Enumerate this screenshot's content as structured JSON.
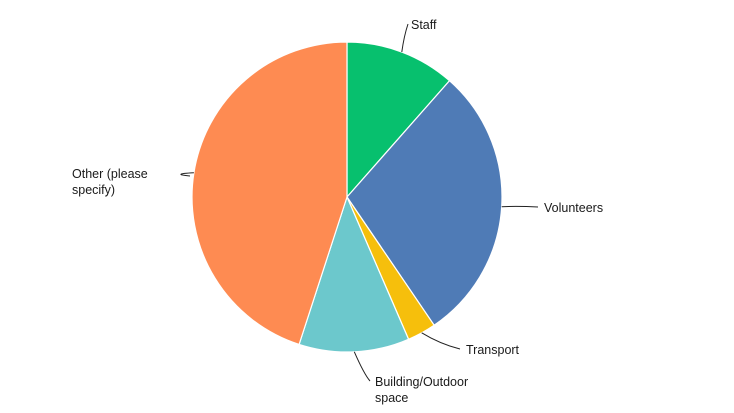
{
  "chart_data": {
    "type": "pie",
    "title": "",
    "start_angle_deg": 0,
    "direction": "clockwise",
    "legend": "none",
    "slices": [
      {
        "label": "Staff",
        "value": 11.5,
        "color": "#07C06E"
      },
      {
        "label": "Volunteers",
        "value": 29.0,
        "color": "#4F7BB6"
      },
      {
        "label": "Transport",
        "value": 3.0,
        "color": "#F6BF0C"
      },
      {
        "label": "Building/Outdoor space",
        "value": 11.5,
        "color": "#6CC8CC"
      },
      {
        "label": "Other (please specify)",
        "value": 45.0,
        "color": "#FE8B52"
      }
    ]
  }
}
